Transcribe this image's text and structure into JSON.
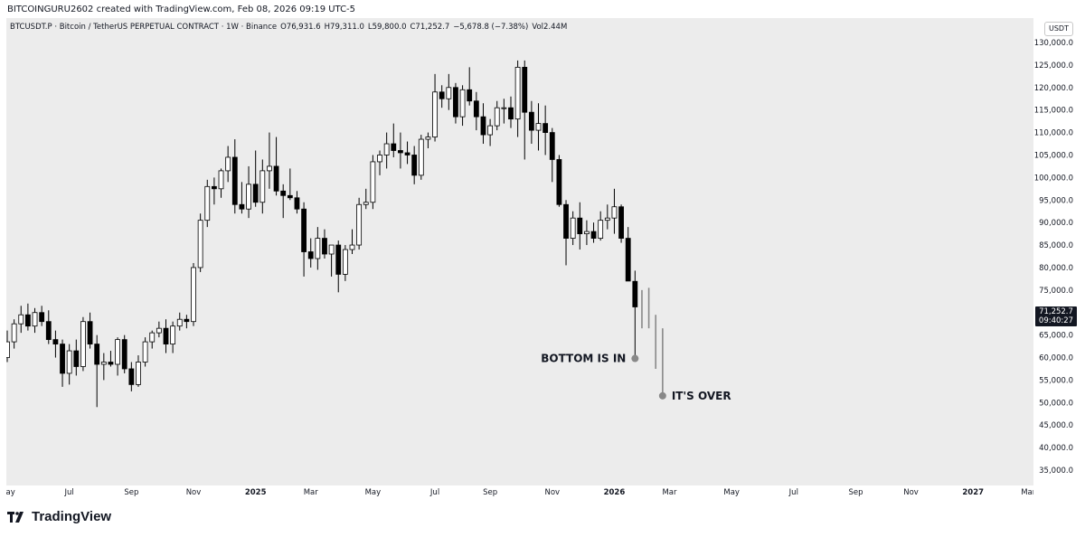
{
  "header": {
    "created_text": "BITCOINGURU2602 created with TradingView.com, Feb 08, 2026 09:19 UTC-5"
  },
  "info_bar": {
    "symbol": "BTCUSDT.P · Bitcoin / TetherUS PERPETUAL CONTRACT · 1W · Binance",
    "open": "O76,931.6",
    "high": "H79,311.0",
    "low": "L59,800.0",
    "close": "C71,252.7",
    "change": "−5,678.8 (−7.38%)",
    "volume": "Vol2.44M"
  },
  "price_axis": {
    "currency": "USDT",
    "last_price": "71,252.7",
    "countdown": "09:40:27"
  },
  "footer": {
    "brand": "TradingView"
  },
  "colors": {
    "background": "#ececec",
    "bear_candle": "#000000",
    "bull_candle": "#ffffff",
    "wick": "#000000",
    "projection": "#888888",
    "text": "#131722"
  },
  "chart_data": {
    "type": "candlestick",
    "title": "",
    "xlabel": "",
    "ylabel": "",
    "ylim": [
      35000,
      130000
    ],
    "y_ticks": [
      "35,000.0",
      "40,000.0",
      "45,000.0",
      "50,000.0",
      "55,000.0",
      "60,000.0",
      "65,000.0",
      "70,000.0",
      "75,000.0",
      "80,000.0",
      "85,000.0",
      "90,000.0",
      "95,000.0",
      "100,000.0",
      "105,000.0",
      "110,000.0",
      "115,000.0",
      "120,000.0",
      "125,000.0",
      "130,000.0"
    ],
    "x_ticks": [
      {
        "label": "May",
        "week": 0,
        "bold": false
      },
      {
        "label": "Jul",
        "week": 9,
        "bold": false
      },
      {
        "label": "Sep",
        "week": 18,
        "bold": false
      },
      {
        "label": "Nov",
        "week": 27,
        "bold": false
      },
      {
        "label": "2025",
        "week": 36,
        "bold": true
      },
      {
        "label": "Mar",
        "week": 44,
        "bold": false
      },
      {
        "label": "May",
        "week": 53,
        "bold": false
      },
      {
        "label": "Jul",
        "week": 62,
        "bold": false
      },
      {
        "label": "Sep",
        "week": 70,
        "bold": false
      },
      {
        "label": "Nov",
        "week": 79,
        "bold": false
      },
      {
        "label": "2026",
        "week": 88,
        "bold": true
      },
      {
        "label": "Mar",
        "week": 96,
        "bold": false
      },
      {
        "label": "May",
        "week": 105,
        "bold": false
      },
      {
        "label": "Jul",
        "week": 114,
        "bold": false
      },
      {
        "label": "Sep",
        "week": 123,
        "bold": false
      },
      {
        "label": "Nov",
        "week": 131,
        "bold": false
      },
      {
        "label": "2027",
        "week": 140,
        "bold": true
      },
      {
        "label": "Mar",
        "week": 148,
        "bold": false
      }
    ],
    "candles": [
      {
        "o": 60000,
        "h": 66000,
        "l": 59000,
        "c": 63500
      },
      {
        "o": 63500,
        "h": 68500,
        "l": 62000,
        "c": 67500
      },
      {
        "o": 67500,
        "h": 71500,
        "l": 65500,
        "c": 69500
      },
      {
        "o": 69500,
        "h": 72000,
        "l": 66000,
        "c": 67000
      },
      {
        "o": 67000,
        "h": 71000,
        "l": 65500,
        "c": 70000
      },
      {
        "o": 70000,
        "h": 71500,
        "l": 67000,
        "c": 68000
      },
      {
        "o": 68000,
        "h": 70500,
        "l": 63000,
        "c": 64000
      },
      {
        "o": 64000,
        "h": 66000,
        "l": 60000,
        "c": 63000
      },
      {
        "o": 63000,
        "h": 64000,
        "l": 53500,
        "c": 56500
      },
      {
        "o": 56500,
        "h": 63000,
        "l": 54000,
        "c": 61500
      },
      {
        "o": 61500,
        "h": 64000,
        "l": 56000,
        "c": 58000
      },
      {
        "o": 58000,
        "h": 69000,
        "l": 57000,
        "c": 68000
      },
      {
        "o": 68000,
        "h": 70000,
        "l": 62000,
        "c": 63000
      },
      {
        "o": 63000,
        "h": 65000,
        "l": 49000,
        "c": 58500
      },
      {
        "o": 58500,
        "h": 61000,
        "l": 55000,
        "c": 59000
      },
      {
        "o": 59000,
        "h": 61500,
        "l": 58000,
        "c": 58500
      },
      {
        "o": 58500,
        "h": 64500,
        "l": 56000,
        "c": 64000
      },
      {
        "o": 64000,
        "h": 65000,
        "l": 56500,
        "c": 57500
      },
      {
        "o": 57500,
        "h": 59000,
        "l": 52500,
        "c": 54000
      },
      {
        "o": 54000,
        "h": 60500,
        "l": 53500,
        "c": 59000
      },
      {
        "o": 59000,
        "h": 64500,
        "l": 58000,
        "c": 63500
      },
      {
        "o": 63500,
        "h": 66000,
        "l": 62000,
        "c": 65500
      },
      {
        "o": 65500,
        "h": 68000,
        "l": 64500,
        "c": 66500
      },
      {
        "o": 66500,
        "h": 68500,
        "l": 61000,
        "c": 63000
      },
      {
        "o": 63000,
        "h": 68000,
        "l": 61000,
        "c": 67000
      },
      {
        "o": 67000,
        "h": 70000,
        "l": 66000,
        "c": 68500
      },
      {
        "o": 68500,
        "h": 69500,
        "l": 66500,
        "c": 68000
      },
      {
        "o": 68000,
        "h": 81000,
        "l": 67000,
        "c": 80000
      },
      {
        "o": 80000,
        "h": 92000,
        "l": 79000,
        "c": 90500
      },
      {
        "o": 90500,
        "h": 99500,
        "l": 89000,
        "c": 98000
      },
      {
        "o": 98000,
        "h": 100000,
        "l": 94000,
        "c": 97500
      },
      {
        "o": 97500,
        "h": 102000,
        "l": 95500,
        "c": 101500
      },
      {
        "o": 101500,
        "h": 107000,
        "l": 99000,
        "c": 104500
      },
      {
        "o": 104500,
        "h": 108500,
        "l": 92000,
        "c": 94000
      },
      {
        "o": 94000,
        "h": 99000,
        "l": 92000,
        "c": 93000
      },
      {
        "o": 93000,
        "h": 102500,
        "l": 91000,
        "c": 98500
      },
      {
        "o": 98500,
        "h": 106000,
        "l": 93500,
        "c": 94500
      },
      {
        "o": 94500,
        "h": 104000,
        "l": 92000,
        "c": 101500
      },
      {
        "o": 101500,
        "h": 110000,
        "l": 97500,
        "c": 102500
      },
      {
        "o": 102500,
        "h": 109000,
        "l": 96000,
        "c": 97000
      },
      {
        "o": 97000,
        "h": 98500,
        "l": 91000,
        "c": 96000
      },
      {
        "o": 96000,
        "h": 102000,
        "l": 95000,
        "c": 95500
      },
      {
        "o": 95500,
        "h": 97000,
        "l": 92000,
        "c": 93000
      },
      {
        "o": 93000,
        "h": 94500,
        "l": 78000,
        "c": 83500
      },
      {
        "o": 83500,
        "h": 86500,
        "l": 80000,
        "c": 82000
      },
      {
        "o": 82000,
        "h": 89000,
        "l": 79500,
        "c": 86500
      },
      {
        "o": 86500,
        "h": 88500,
        "l": 82000,
        "c": 83000
      },
      {
        "o": 83000,
        "h": 85000,
        "l": 78000,
        "c": 85000
      },
      {
        "o": 85000,
        "h": 86000,
        "l": 74500,
        "c": 78500
      },
      {
        "o": 78500,
        "h": 85000,
        "l": 77000,
        "c": 84000
      },
      {
        "o": 84000,
        "h": 88500,
        "l": 83000,
        "c": 85000
      },
      {
        "o": 85000,
        "h": 95500,
        "l": 84000,
        "c": 94000
      },
      {
        "o": 94000,
        "h": 97500,
        "l": 93000,
        "c": 94500
      },
      {
        "o": 94500,
        "h": 105000,
        "l": 93000,
        "c": 103500
      },
      {
        "o": 103500,
        "h": 106000,
        "l": 100500,
        "c": 105000
      },
      {
        "o": 105000,
        "h": 110000,
        "l": 102000,
        "c": 107500
      },
      {
        "o": 107500,
        "h": 112000,
        "l": 104500,
        "c": 106000
      },
      {
        "o": 106000,
        "h": 110000,
        "l": 102000,
        "c": 105500
      },
      {
        "o": 105500,
        "h": 108000,
        "l": 103000,
        "c": 105000
      },
      {
        "o": 105000,
        "h": 107000,
        "l": 98500,
        "c": 100500
      },
      {
        "o": 100500,
        "h": 109500,
        "l": 99500,
        "c": 108500
      },
      {
        "o": 108500,
        "h": 110000,
        "l": 106500,
        "c": 109000
      },
      {
        "o": 109000,
        "h": 123000,
        "l": 108000,
        "c": 119000
      },
      {
        "o": 119000,
        "h": 120500,
        "l": 115500,
        "c": 117500
      },
      {
        "o": 117500,
        "h": 123000,
        "l": 115000,
        "c": 120000
      },
      {
        "o": 120000,
        "h": 121000,
        "l": 112000,
        "c": 113500
      },
      {
        "o": 113500,
        "h": 120500,
        "l": 111500,
        "c": 119500
      },
      {
        "o": 119500,
        "h": 124500,
        "l": 116000,
        "c": 117000
      },
      {
        "o": 117000,
        "h": 119000,
        "l": 110500,
        "c": 113500
      },
      {
        "o": 113500,
        "h": 116500,
        "l": 107500,
        "c": 109500
      },
      {
        "o": 109500,
        "h": 113000,
        "l": 107000,
        "c": 111500
      },
      {
        "o": 111500,
        "h": 117000,
        "l": 110500,
        "c": 115500
      },
      {
        "o": 115500,
        "h": 117500,
        "l": 112000,
        "c": 115500
      },
      {
        "o": 115500,
        "h": 118000,
        "l": 111000,
        "c": 113000
      },
      {
        "o": 113000,
        "h": 126000,
        "l": 109000,
        "c": 124500
      },
      {
        "o": 124500,
        "h": 126000,
        "l": 104000,
        "c": 114500
      },
      {
        "o": 114500,
        "h": 117000,
        "l": 107500,
        "c": 110500
      },
      {
        "o": 110500,
        "h": 116500,
        "l": 106000,
        "c": 112000
      },
      {
        "o": 112000,
        "h": 116000,
        "l": 105000,
        "c": 110000
      },
      {
        "o": 110000,
        "h": 111000,
        "l": 99000,
        "c": 104000
      },
      {
        "o": 104000,
        "h": 105000,
        "l": 93500,
        "c": 94000
      },
      {
        "o": 94000,
        "h": 95000,
        "l": 80500,
        "c": 86500
      },
      {
        "o": 86500,
        "h": 92500,
        "l": 85000,
        "c": 91000
      },
      {
        "o": 91000,
        "h": 94500,
        "l": 84000,
        "c": 87500
      },
      {
        "o": 87500,
        "h": 90500,
        "l": 85000,
        "c": 88000
      },
      {
        "o": 88000,
        "h": 90000,
        "l": 85500,
        "c": 86500
      },
      {
        "o": 86500,
        "h": 92500,
        "l": 86000,
        "c": 90500
      },
      {
        "o": 90500,
        "h": 94000,
        "l": 88500,
        "c": 91000
      },
      {
        "o": 91000,
        "h": 97500,
        "l": 87500,
        "c": 93500
      },
      {
        "o": 93500,
        "h": 94000,
        "l": 85500,
        "c": 86500
      },
      {
        "o": 86500,
        "h": 89000,
        "l": 77000,
        "c": 77000
      },
      {
        "o": 76931.6,
        "h": 79311.0,
        "l": 59800.0,
        "c": 71252.7
      }
    ],
    "projection_lines": [
      {
        "week": 92,
        "high": 75000,
        "low": 66500
      },
      {
        "week": 93,
        "high": 75500,
        "low": 66500
      },
      {
        "week": 94,
        "high": 69500,
        "low": 57500
      },
      {
        "week": 95,
        "high": 66500,
        "low": 51500
      }
    ],
    "annotations": [
      {
        "text": "BOTTOM IS IN",
        "week": 91,
        "value": 59800
      },
      {
        "text": "IT'S OVER",
        "week": 95,
        "value": 51500
      }
    ]
  }
}
